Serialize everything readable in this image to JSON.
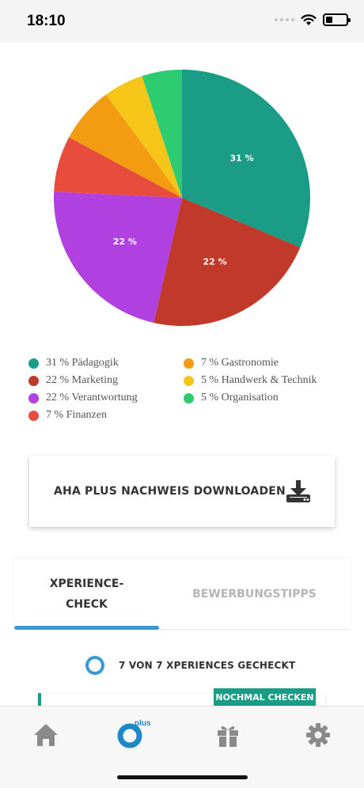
{
  "status_bar": {
    "time": "18:10",
    "battery_level": 0.35
  },
  "colors": {
    "accent_blue": "#3a9ad9",
    "teal": "#1a9c87",
    "icon_gray": "#8a8a8a"
  },
  "chart_data": {
    "type": "pie",
    "slices": [
      {
        "label": "Pädagogik",
        "value": 31,
        "color": "#1a9c87",
        "legend": "31 % Pädagogik",
        "slice_label": "31 %"
      },
      {
        "label": "Marketing",
        "value": 22,
        "color": "#c0392b",
        "legend": "22 % Marketing",
        "slice_label": "22 %"
      },
      {
        "label": "Verantwortung",
        "value": 22,
        "color": "#b040e0",
        "legend": "22 % Verantwortung",
        "slice_label": "22 %"
      },
      {
        "label": "Finanzen",
        "value": 7,
        "color": "#e74c3c",
        "legend": "7 % Finanzen",
        "slice_label": ""
      },
      {
        "label": "Gastronomie",
        "value": 7,
        "color": "#f39c12",
        "legend": "7 % Gastronomie",
        "slice_label": ""
      },
      {
        "label": "Handwerk & Technik",
        "value": 5,
        "color": "#f5c518",
        "legend": "5 % Handwerk & Technik",
        "slice_label": ""
      },
      {
        "label": "Organisation",
        "value": 5,
        "color": "#2ecc71",
        "legend": "5 % Organisation",
        "slice_label": ""
      }
    ],
    "legend_placement": "bottom"
  },
  "legend": {
    "left": [
      {
        "text": "31 % Pädagogik",
        "color": "#1a9c87"
      },
      {
        "text": "22 % Marketing",
        "color": "#c0392b"
      },
      {
        "text": "22 % Verantwortung",
        "color": "#b040e0"
      },
      {
        "text": "7 % Finanzen",
        "color": "#e74c3c"
      }
    ],
    "right": [
      {
        "text": "7 % Gastronomie",
        "color": "#f39c12"
      },
      {
        "text": "5 % Handwerk & Technik",
        "color": "#f5c518"
      },
      {
        "text": "5 % Organisation",
        "color": "#2ecc71"
      }
    ]
  },
  "download": {
    "label": "AHA PLUS NACHWEIS DOWNLOADEN",
    "icon": "download-icon"
  },
  "tabs": [
    {
      "line1": "XPERIENCE-",
      "line2": "CHECK",
      "active": true
    },
    {
      "line1": "BEWERBUNGSTIPPS",
      "line2": "",
      "active": false
    }
  ],
  "check": {
    "text": "7 VON 7 XPERIENCES GECHECKT"
  },
  "recheck_button": "NOCHMAL CHECKEN",
  "nav": {
    "plus_label": "plus",
    "items": [
      "home-icon",
      "plus-logo-icon",
      "gift-icon",
      "gear-icon"
    ]
  }
}
